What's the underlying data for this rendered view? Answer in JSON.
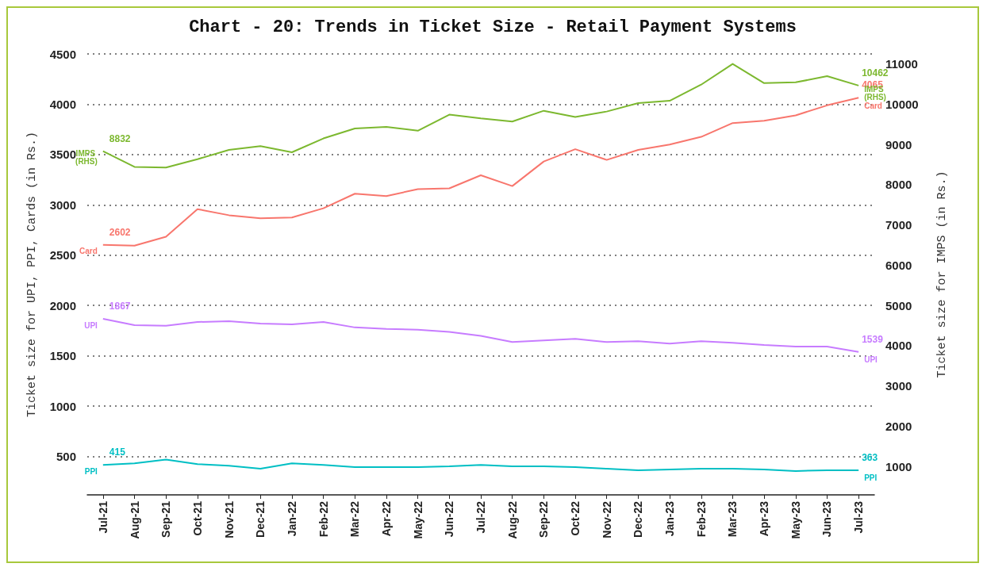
{
  "chart_data": {
    "type": "line",
    "title": "Chart - 20: Trends in Ticket Size - Retail Payment Systems",
    "ylabel": "Ticket size for UPI, PPI, Cards (in Rs.)",
    "y2label": "Ticket size for IMPS (in Rs.)",
    "categories": [
      "Jul-21",
      "Aug-21",
      "Sep-21",
      "Oct-21",
      "Nov-21",
      "Dec-21",
      "Jan-22",
      "Feb-22",
      "Mar-22",
      "Apr-22",
      "May-22",
      "Jun-22",
      "Jul-22",
      "Aug-22",
      "Sep-22",
      "Oct-22",
      "Nov-22",
      "Dec-22",
      "Jan-23",
      "Feb-23",
      "Mar-23",
      "Apr-23",
      "May-23",
      "Jun-23",
      "Jul-23"
    ],
    "series": [
      {
        "name": "IMPS (RHS)",
        "color": "#7cb82f",
        "axis": "y2",
        "values": [
          8832,
          8443,
          8424,
          8634,
          8863,
          8958,
          8805,
          9149,
          9397,
          9435,
          9340,
          9740,
          9645,
          9569,
          9836,
          9683,
          9817,
          10027,
          10084,
          10485,
          11000,
          10523,
          10542,
          10695,
          10462
        ],
        "value_labels": [
          "8832",
          null,
          null,
          null,
          null,
          null,
          null,
          null,
          null,
          null,
          null,
          null,
          null,
          null,
          null,
          null,
          null,
          null,
          null,
          null,
          null,
          null,
          null,
          null,
          "10462"
        ]
      },
      {
        "name": "Card",
        "color": "#f8766d",
        "values": [
          2602,
          2595,
          2683,
          2958,
          2897,
          2866,
          2874,
          2966,
          3111,
          3088,
          3156,
          3164,
          3294,
          3187,
          3431,
          3553,
          3447,
          3546,
          3599,
          3676,
          3813,
          3836,
          3889,
          3989,
          4065
        ],
        "value_labels": [
          "2602",
          null,
          null,
          null,
          null,
          null,
          null,
          null,
          null,
          null,
          null,
          null,
          null,
          null,
          null,
          null,
          null,
          null,
          null,
          null,
          null,
          null,
          null,
          null,
          "4065"
        ]
      },
      {
        "name": "UPI",
        "color": "#c77cff",
        "values": [
          1867,
          1805,
          1798,
          1836,
          1844,
          1821,
          1813,
          1836,
          1782,
          1767,
          1760,
          1737,
          1698,
          1637,
          1653,
          1668,
          1637,
          1645,
          1622,
          1645,
          1630,
          1607,
          1592,
          1592,
          1539
        ],
        "value_labels": [
          "1867",
          null,
          null,
          null,
          null,
          null,
          null,
          null,
          null,
          null,
          null,
          null,
          null,
          null,
          null,
          null,
          null,
          null,
          null,
          null,
          null,
          null,
          null,
          null,
          "1539"
        ]
      },
      {
        "name": "PPI",
        "color": "#00bfc4",
        "values": [
          415,
          431,
          469,
          424,
          408,
          378,
          431,
          416,
          393,
          393,
          393,
          401,
          416,
          401,
          401,
          393,
          378,
          363,
          370,
          378,
          378,
          370,
          355,
          363,
          363
        ],
        "value_labels": [
          "415",
          null,
          null,
          null,
          null,
          null,
          null,
          null,
          null,
          null,
          null,
          null,
          null,
          null,
          null,
          null,
          null,
          null,
          null,
          null,
          null,
          null,
          null,
          null,
          "363"
        ]
      }
    ],
    "ylim": [
      118,
      4500
    ],
    "yticks": [
      500,
      1000,
      1500,
      2000,
      2500,
      3000,
      3500,
      4000,
      4500
    ],
    "y2lim": [
      294,
      11248
    ],
    "y2ticks": [
      1000,
      2000,
      3000,
      4000,
      5000,
      6000,
      7000,
      8000,
      9000,
      10000,
      11000
    ],
    "grid": "y",
    "legend": false,
    "marker": "none",
    "line_style": "solid"
  }
}
